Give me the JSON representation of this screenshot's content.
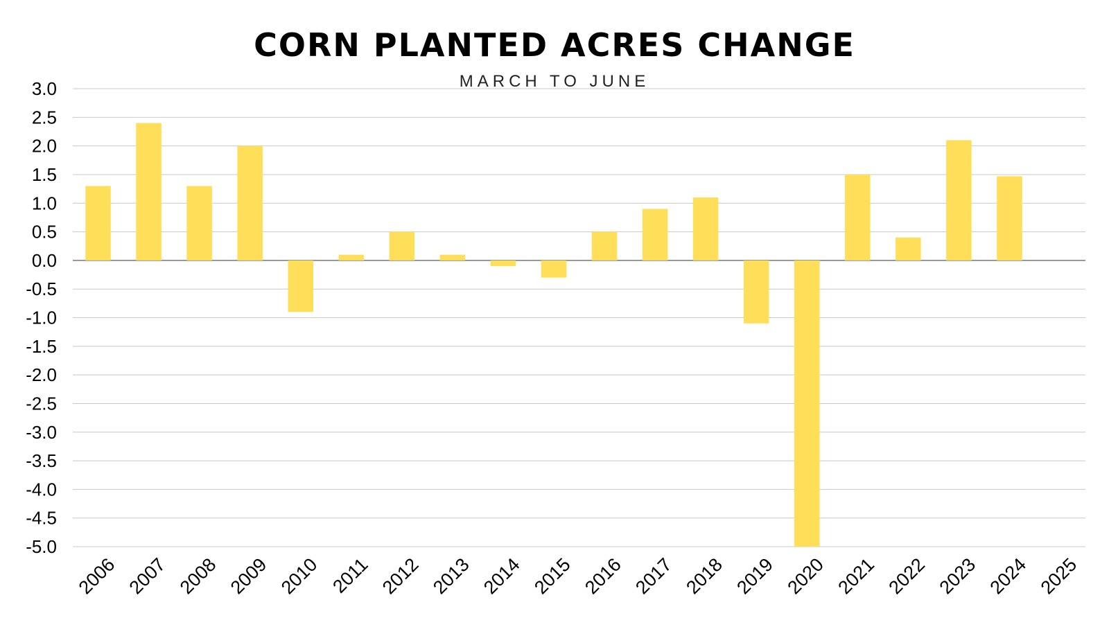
{
  "chart_data": {
    "type": "bar",
    "title": "CORN PLANTED ACRES CHANGE",
    "subtitle": "MARCH TO JUNE",
    "xlabel": "",
    "ylabel": "",
    "ylim": [
      -5.0,
      3.0
    ],
    "ytick_step": 0.5,
    "grid": true,
    "bar_color": "#FFDE59",
    "categories": [
      "2006",
      "2007",
      "2008",
      "2009",
      "2010",
      "2011",
      "2012",
      "2013",
      "2014",
      "2015",
      "2016",
      "2017",
      "2018",
      "2019",
      "2020",
      "2021",
      "2022",
      "2023",
      "2024",
      "2025"
    ],
    "values": [
      1.3,
      2.4,
      1.3,
      2.0,
      -0.9,
      0.1,
      0.5,
      0.1,
      -0.1,
      -0.3,
      0.5,
      0.9,
      1.1,
      -1.1,
      -5.0,
      1.5,
      0.4,
      2.1,
      1.47,
      null
    ]
  }
}
